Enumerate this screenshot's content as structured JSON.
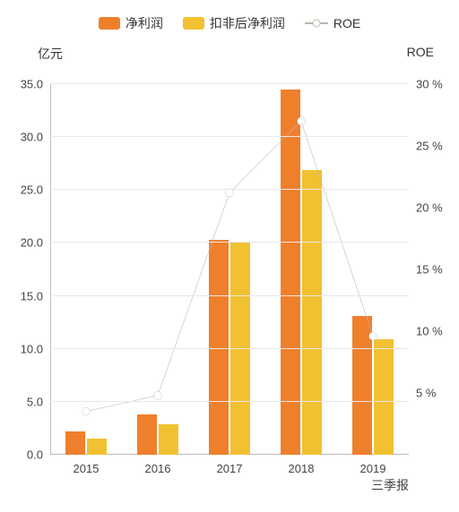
{
  "legend": {
    "series1": "净利润",
    "series2": "扣非后净利润",
    "series3": "ROE"
  },
  "axis": {
    "left_title": "亿元",
    "right_title": "ROE",
    "sublabel": "三季报"
  },
  "chart": {
    "type": "bar+line",
    "categories": [
      "2015",
      "2016",
      "2017",
      "2018",
      "2019"
    ],
    "y_left": {
      "min": 0,
      "max": 35,
      "step": 5,
      "format": "0.0"
    },
    "y_right": {
      "min": 0,
      "max": 30,
      "step": 5,
      "format": "0 %"
    },
    "series_bar1": {
      "label": "净利润",
      "color": "#f07f2c",
      "values": [
        2.2,
        3.8,
        20.3,
        34.5,
        13.1
      ]
    },
    "series_bar2": {
      "label": "扣非后净利润",
      "color": "#f2c132",
      "values": [
        1.5,
        2.9,
        20.0,
        26.9,
        10.9
      ]
    },
    "series_line": {
      "label": "ROE",
      "color": "#bdb7ad",
      "values": [
        3.5,
        4.8,
        21.2,
        27.0,
        9.6
      ]
    },
    "bar_width": 0.28,
    "bar_gap": 0.02,
    "group_padding": 0.21,
    "grid_color": "#e8e8e8",
    "axis_color": "#bbb",
    "background": "#ffffff",
    "label_fontsize": 13,
    "legend_fontsize": 14
  }
}
